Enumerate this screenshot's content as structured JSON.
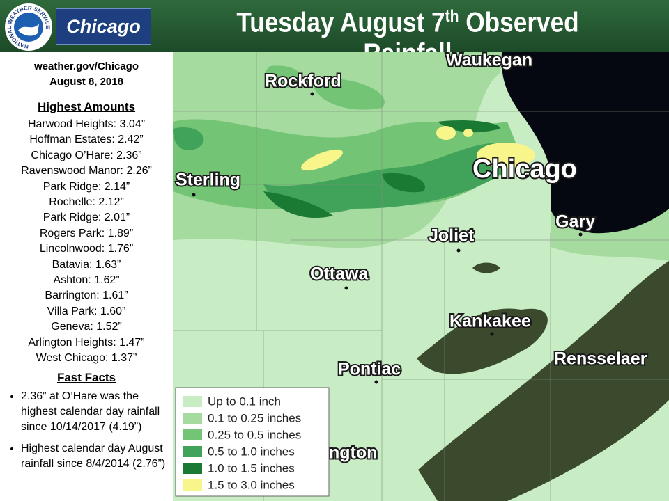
{
  "header": {
    "logo_text": "NATIONAL WEATHER SERVICE",
    "office": "Chicago",
    "title": {
      "main": "Tuesday August 7",
      "sup": "th",
      "rest": "Observed Rainfall"
    }
  },
  "sidebar": {
    "website": "weather.gov/Chicago",
    "date": "August 8, 2018",
    "amounts_heading": "Highest Amounts",
    "amounts": [
      "Harwood Heights: 3.04”",
      "Hoffman Estates: 2.42”",
      "Chicago O’Hare: 2.36”",
      "Ravenswood Manor: 2.26”",
      "Park Ridge: 2.14”",
      "Rochelle: 2.12”",
      "Park Ridge: 2.01”",
      "Rogers Park: 1.89”",
      "Lincolnwood: 1.76”",
      "Batavia: 1.63”",
      "Ashton: 1.62”",
      "Barrington: 1.61”",
      "Villa Park: 1.60”",
      "Geneva: 1.52”",
      "Arlington Heights: 1.47”",
      "West Chicago: 1.37”"
    ],
    "facts_heading": "Fast Facts",
    "facts": [
      "2.36” at O’Hare was the highest calendar day rainfall since 10/14/2017 (4.19”)",
      "Highest calendar day August rainfall since 8/4/2014 (2.76”)"
    ]
  },
  "map": {
    "cities": [
      {
        "label": "Waukegan"
      },
      {
        "label": "Rockford"
      },
      {
        "label": "Chicago"
      },
      {
        "label": "Sterling"
      },
      {
        "label": "Gary"
      },
      {
        "label": "Joliet"
      },
      {
        "label": "Ottawa"
      },
      {
        "label": "Kankakee"
      },
      {
        "label": "Rensselaer"
      },
      {
        "label": "Pontiac"
      },
      {
        "label": "ington"
      }
    ],
    "legend": [
      {
        "label": "Up to 0.1 inch",
        "color": "#c8ecc4"
      },
      {
        "label": "0.1 to 0.25 inches",
        "color": "#a6dba0"
      },
      {
        "label": "0.25 to 0.5 inches",
        "color": "#74c476"
      },
      {
        "label": "0.5 to 1.0 inches",
        "color": "#41a35a"
      },
      {
        "label": "1.0 to 1.5 inches",
        "color": "#1a7a33"
      },
      {
        "label": "1.5 to 3.0 inches",
        "color": "#f8f58a"
      }
    ]
  }
}
